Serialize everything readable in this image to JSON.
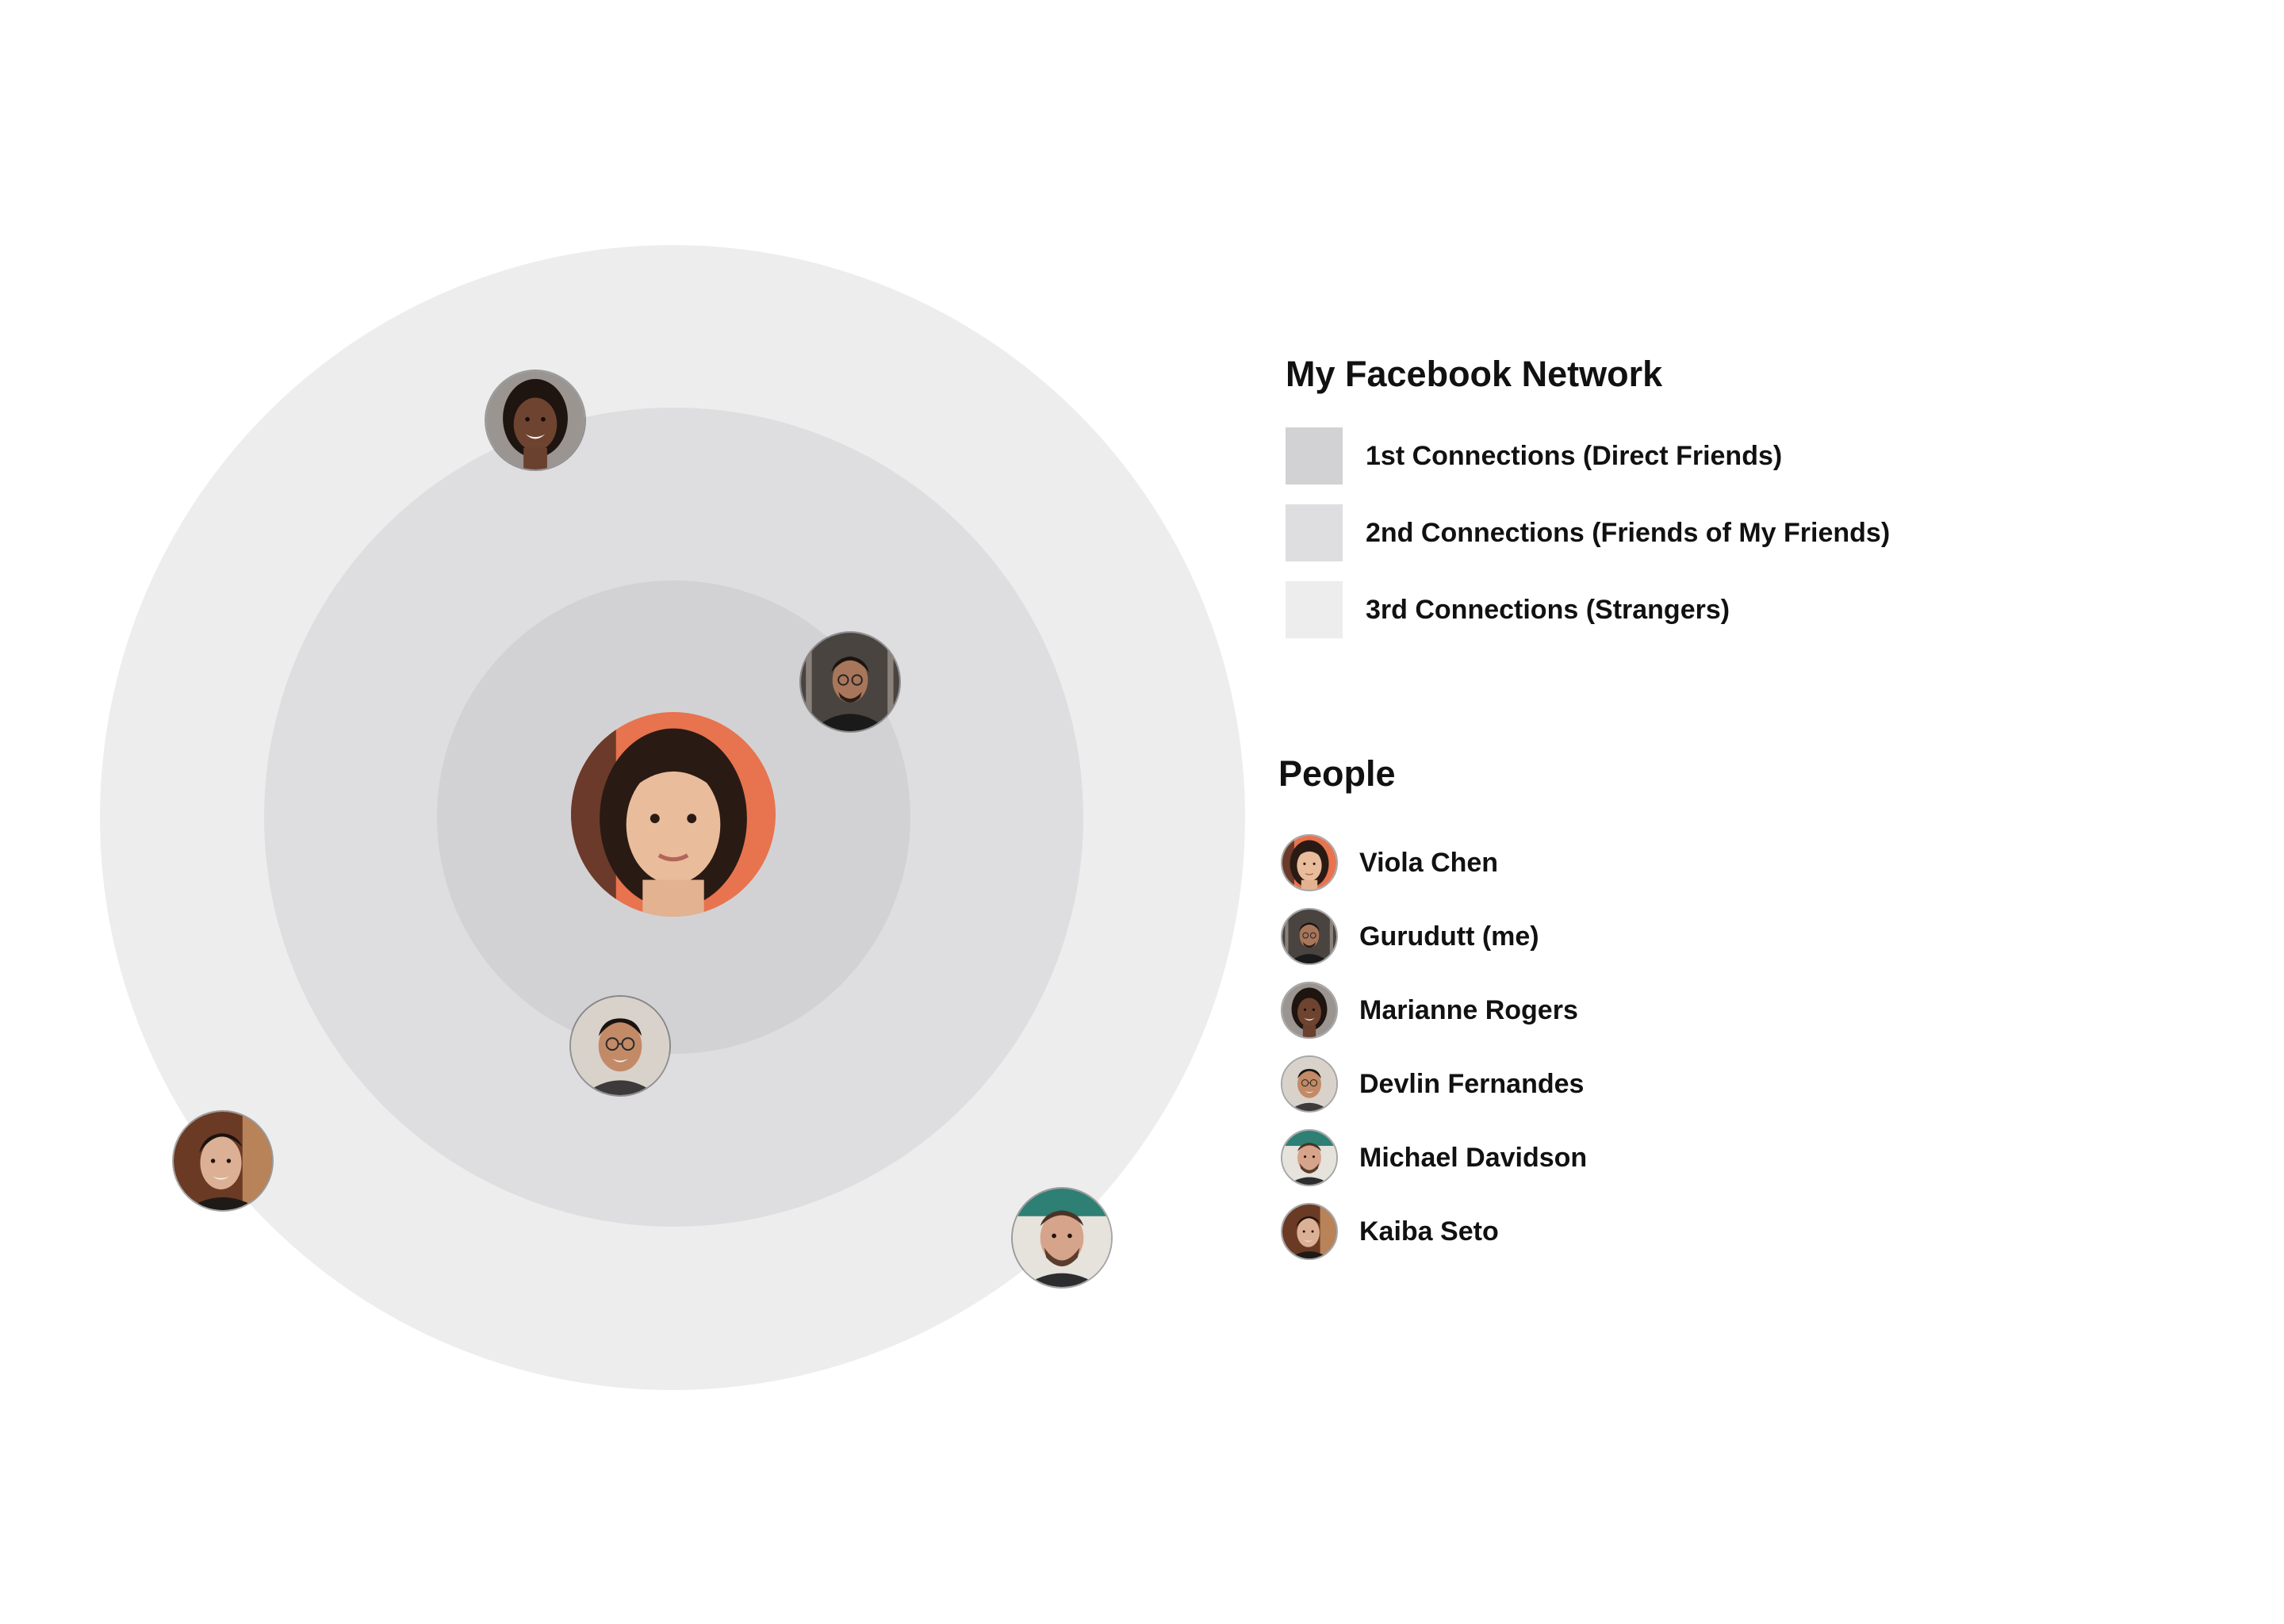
{
  "legend": {
    "title": "My Facebook Network",
    "items": [
      {
        "label": "1st Connections (Direct Friends)",
        "color": "#d2d2d4"
      },
      {
        "label": "2nd Connections (Friends of My Friends)",
        "color": "#dedee0"
      },
      {
        "label": "3rd Connections (Strangers)",
        "color": "#ededed"
      }
    ]
  },
  "people_section": {
    "title": "People",
    "people": [
      {
        "name": "Viola Chen",
        "icon": "viola-chen-avatar"
      },
      {
        "name": "Gurudutt (me)",
        "icon": "gurudutt-avatar"
      },
      {
        "name": "Marianne Rogers",
        "icon": "marianne-rogers-avatar"
      },
      {
        "name": "Devlin Fernandes",
        "icon": "devlin-fernandes-avatar"
      },
      {
        "name": "Michael Davidson",
        "icon": "michael-davidson-avatar"
      },
      {
        "name": "Kaiba Seto",
        "icon": "kaiba-seto-avatar"
      }
    ]
  },
  "network": {
    "center_person": "Viola Chen",
    "placements": [
      {
        "person": "Gurudutt (me)",
        "ring": "1st Connections (Direct Friends)"
      },
      {
        "person": "Devlin Fernandes",
        "ring": "1st Connections (Direct Friends)"
      },
      {
        "person": "Marianne Rogers",
        "ring": "2nd Connections (Friends of My Friends)"
      },
      {
        "person": "Michael Davidson",
        "ring": "3rd Connections (Strangers)"
      },
      {
        "person": "Kaiba Seto",
        "ring": "3rd Connections (Strangers)"
      }
    ]
  }
}
